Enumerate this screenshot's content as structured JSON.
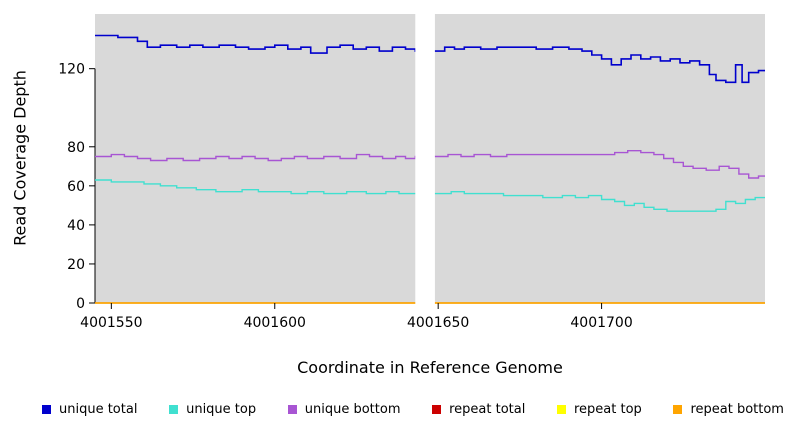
{
  "figure": {
    "background": "#ffffff"
  },
  "chart_data": {
    "type": "line",
    "step": true,
    "title": "",
    "xlabel": "Coordinate in Reference Genome",
    "ylabel": "Read Coverage Depth",
    "xlim": [
      4001545,
      4001750
    ],
    "ylim": [
      0,
      148
    ],
    "x_ticks": [
      4001550,
      4001600,
      4001650,
      4001700
    ],
    "y_ticks": [
      0,
      20,
      40,
      60,
      80,
      120
    ],
    "plot_background": "#d9d9d9",
    "grid": false,
    "legend_position": "bottom",
    "gap_region": {
      "x_start": 4001643,
      "x_end": 4001649
    },
    "series": [
      {
        "name": "unique total",
        "color": "#0000CD",
        "width": 1.6,
        "points": [
          [
            4001545,
            137
          ],
          [
            4001552,
            136
          ],
          [
            4001558,
            134
          ],
          [
            4001561,
            131
          ],
          [
            4001565,
            132
          ],
          [
            4001570,
            131
          ],
          [
            4001574,
            132
          ],
          [
            4001578,
            131
          ],
          [
            4001583,
            132
          ],
          [
            4001588,
            131
          ],
          [
            4001592,
            130
          ],
          [
            4001597,
            131
          ],
          [
            4001600,
            132
          ],
          [
            4001604,
            130
          ],
          [
            4001608,
            131
          ],
          [
            4001611,
            128
          ],
          [
            4001616,
            131
          ],
          [
            4001620,
            132
          ],
          [
            4001624,
            130
          ],
          [
            4001628,
            131
          ],
          [
            4001632,
            129
          ],
          [
            4001636,
            131
          ],
          [
            4001640,
            130
          ],
          [
            4001643,
            129
          ],
          [
            4001649,
            129
          ],
          [
            4001652,
            131
          ],
          [
            4001655,
            130
          ],
          [
            4001658,
            131
          ],
          [
            4001663,
            130
          ],
          [
            4001668,
            131
          ],
          [
            4001674,
            131
          ],
          [
            4001680,
            130
          ],
          [
            4001685,
            131
          ],
          [
            4001690,
            130
          ],
          [
            4001694,
            129
          ],
          [
            4001697,
            127
          ],
          [
            4001700,
            125
          ],
          [
            4001703,
            122
          ],
          [
            4001706,
            125
          ],
          [
            4001709,
            127
          ],
          [
            4001712,
            125
          ],
          [
            4001715,
            126
          ],
          [
            4001718,
            124
          ],
          [
            4001721,
            125
          ],
          [
            4001724,
            123
          ],
          [
            4001727,
            124
          ],
          [
            4001730,
            122
          ],
          [
            4001733,
            117
          ],
          [
            4001735,
            114
          ],
          [
            4001738,
            113
          ],
          [
            4001741,
            122
          ],
          [
            4001743,
            113
          ],
          [
            4001745,
            118
          ],
          [
            4001748,
            119
          ],
          [
            4001750,
            119
          ]
        ]
      },
      {
        "name": "unique top",
        "color": "#40E0D0",
        "width": 1.4,
        "points": [
          [
            4001545,
            63
          ],
          [
            4001550,
            62
          ],
          [
            4001556,
            62
          ],
          [
            4001560,
            61
          ],
          [
            4001565,
            60
          ],
          [
            4001570,
            59
          ],
          [
            4001576,
            58
          ],
          [
            4001582,
            57
          ],
          [
            4001590,
            58
          ],
          [
            4001595,
            57
          ],
          [
            4001600,
            57
          ],
          [
            4001605,
            56
          ],
          [
            4001610,
            57
          ],
          [
            4001615,
            56
          ],
          [
            4001622,
            57
          ],
          [
            4001628,
            56
          ],
          [
            4001634,
            57
          ],
          [
            4001638,
            56
          ],
          [
            4001643,
            56
          ],
          [
            4001649,
            56
          ],
          [
            4001654,
            57
          ],
          [
            4001658,
            56
          ],
          [
            4001664,
            56
          ],
          [
            4001670,
            55
          ],
          [
            4001676,
            55
          ],
          [
            4001682,
            54
          ],
          [
            4001688,
            55
          ],
          [
            4001692,
            54
          ],
          [
            4001696,
            55
          ],
          [
            4001700,
            53
          ],
          [
            4001704,
            52
          ],
          [
            4001707,
            50
          ],
          [
            4001710,
            51
          ],
          [
            4001713,
            49
          ],
          [
            4001716,
            48
          ],
          [
            4001720,
            47
          ],
          [
            4001726,
            47
          ],
          [
            4001731,
            47
          ],
          [
            4001735,
            48
          ],
          [
            4001738,
            52
          ],
          [
            4001741,
            51
          ],
          [
            4001744,
            53
          ],
          [
            4001747,
            54
          ],
          [
            4001750,
            54
          ]
        ]
      },
      {
        "name": "unique bottom",
        "color": "#A855D3",
        "width": 1.4,
        "points": [
          [
            4001545,
            75
          ],
          [
            4001550,
            76
          ],
          [
            4001554,
            75
          ],
          [
            4001558,
            74
          ],
          [
            4001562,
            73
          ],
          [
            4001567,
            74
          ],
          [
            4001572,
            73
          ],
          [
            4001577,
            74
          ],
          [
            4001582,
            75
          ],
          [
            4001586,
            74
          ],
          [
            4001590,
            75
          ],
          [
            4001594,
            74
          ],
          [
            4001598,
            73
          ],
          [
            4001602,
            74
          ],
          [
            4001606,
            75
          ],
          [
            4001610,
            74
          ],
          [
            4001615,
            75
          ],
          [
            4001620,
            74
          ],
          [
            4001625,
            76
          ],
          [
            4001629,
            75
          ],
          [
            4001633,
            74
          ],
          [
            4001637,
            75
          ],
          [
            4001640,
            74
          ],
          [
            4001643,
            75
          ],
          [
            4001649,
            75
          ],
          [
            4001653,
            76
          ],
          [
            4001657,
            75
          ],
          [
            4001661,
            76
          ],
          [
            4001666,
            75
          ],
          [
            4001671,
            76
          ],
          [
            4001676,
            76
          ],
          [
            4001682,
            76
          ],
          [
            4001688,
            76
          ],
          [
            4001694,
            76
          ],
          [
            4001700,
            76
          ],
          [
            4001704,
            77
          ],
          [
            4001708,
            78
          ],
          [
            4001712,
            77
          ],
          [
            4001716,
            76
          ],
          [
            4001719,
            74
          ],
          [
            4001722,
            72
          ],
          [
            4001725,
            70
          ],
          [
            4001728,
            69
          ],
          [
            4001732,
            68
          ],
          [
            4001736,
            70
          ],
          [
            4001739,
            69
          ],
          [
            4001742,
            66
          ],
          [
            4001745,
            64
          ],
          [
            4001748,
            65
          ],
          [
            4001750,
            65
          ]
        ]
      },
      {
        "name": "repeat total",
        "color": "#CC0000",
        "width": 1.2,
        "points": [
          [
            4001545,
            0
          ],
          [
            4001750,
            0
          ]
        ]
      },
      {
        "name": "repeat top",
        "color": "#FFFF00",
        "width": 1.2,
        "points": [
          [
            4001545,
            0
          ],
          [
            4001750,
            0
          ]
        ]
      },
      {
        "name": "repeat bottom",
        "color": "#FFA500",
        "width": 1.6,
        "points": [
          [
            4001545,
            0
          ],
          [
            4001750,
            0
          ]
        ]
      }
    ]
  }
}
